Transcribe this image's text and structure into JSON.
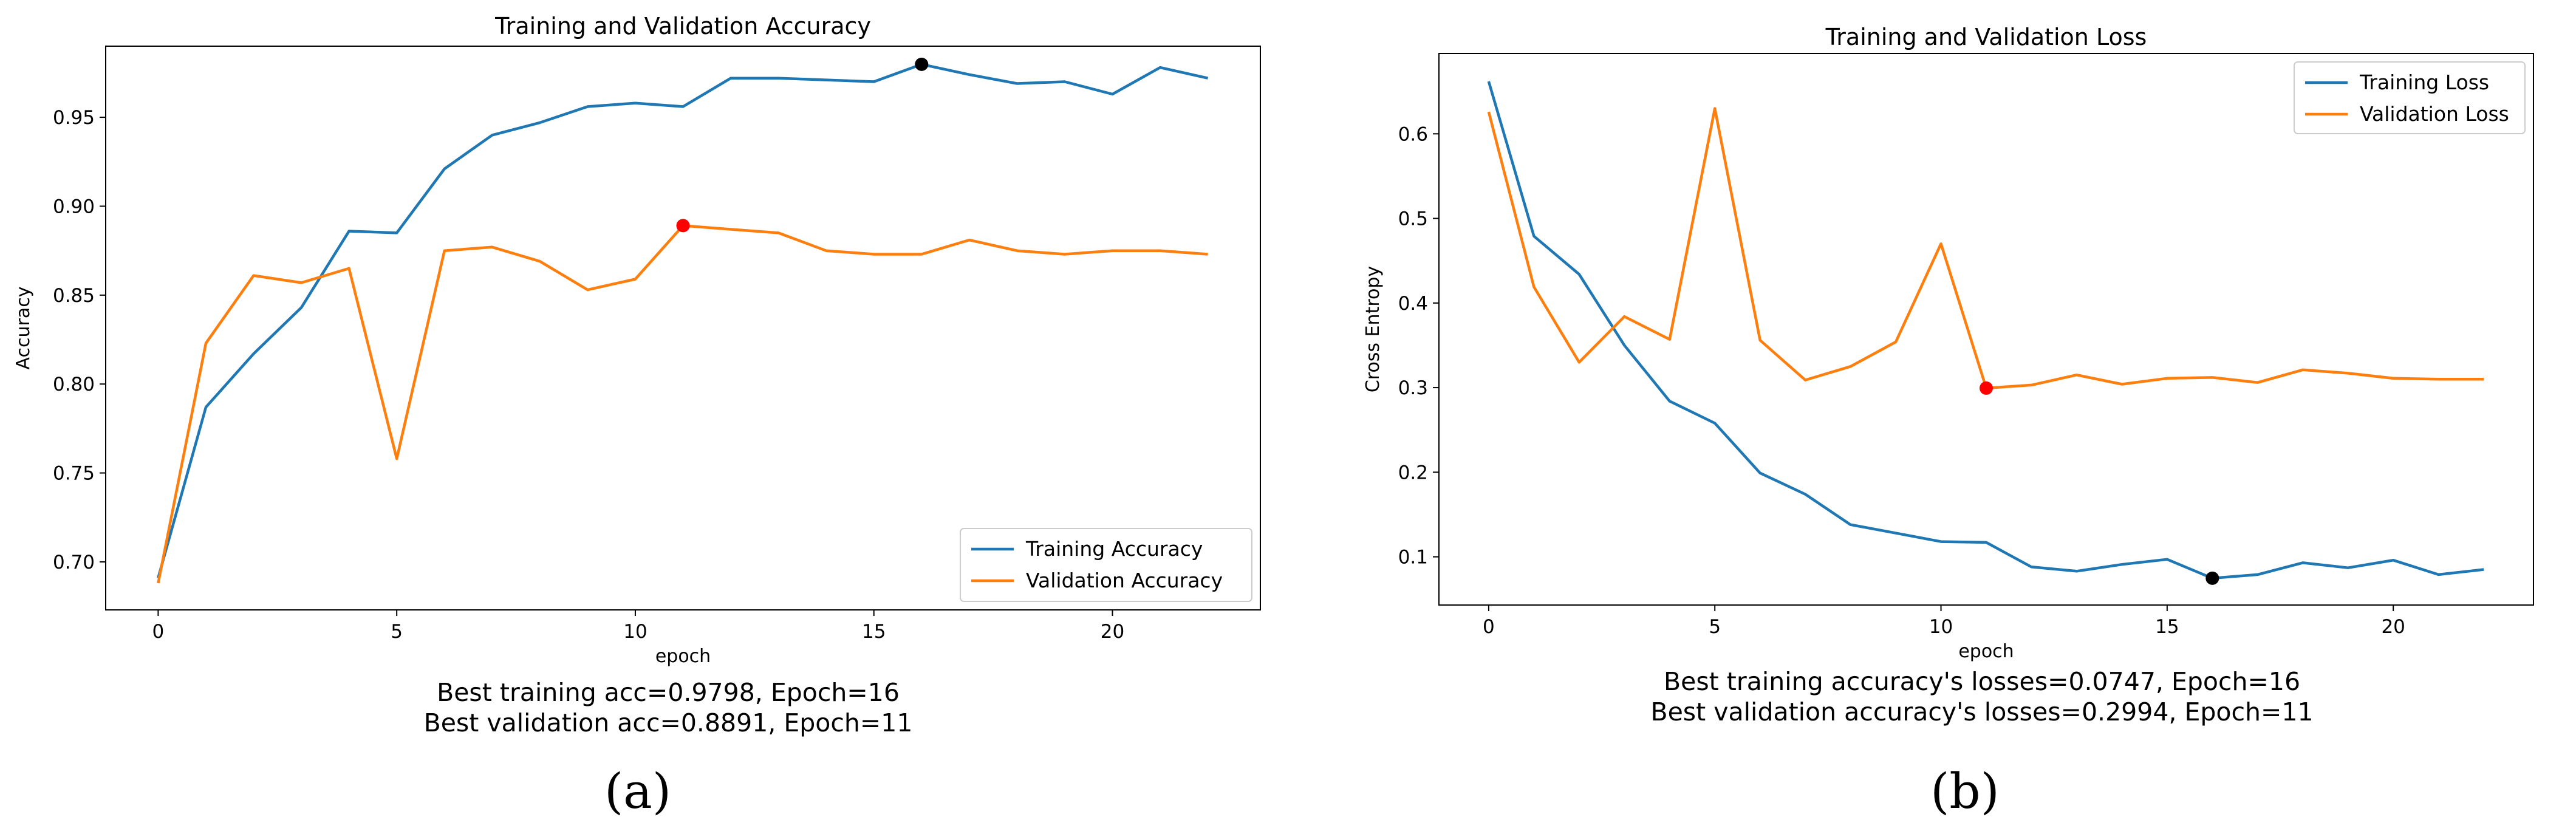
{
  "chart_data": [
    {
      "type": "line",
      "title": "Training and Validation Accuracy",
      "xlabel": "epoch",
      "ylabel": "Accuracy",
      "xlim": [
        -1.1,
        23.1
      ],
      "ylim": [
        0.673,
        0.99
      ],
      "xticks": [
        0,
        5,
        10,
        15,
        20
      ],
      "xtick_labels": [
        "0",
        "5",
        "10",
        "15",
        "20"
      ],
      "yticks": [
        0.7,
        0.75,
        0.8,
        0.85,
        0.9,
        0.95
      ],
      "ytick_labels": [
        "0.70",
        "0.75",
        "0.80",
        "0.85",
        "0.90",
        "0.95"
      ],
      "legend_position": "bottom-right",
      "x": [
        0,
        1,
        2,
        3,
        4,
        5,
        6,
        7,
        8,
        9,
        10,
        11,
        12,
        13,
        14,
        15,
        16,
        17,
        18,
        19,
        20,
        21,
        22
      ],
      "series": [
        {
          "name": "Training Accuracy",
          "color": "#1f77b4",
          "values": [
            0.691,
            0.787,
            0.817,
            0.843,
            0.886,
            0.885,
            0.921,
            0.94,
            0.947,
            0.956,
            0.958,
            0.956,
            0.972,
            0.972,
            0.971,
            0.97,
            0.9798,
            0.974,
            0.969,
            0.97,
            0.963,
            0.978,
            0.972
          ]
        },
        {
          "name": "Validation Accuracy",
          "color": "#ff7f0e",
          "values": [
            0.688,
            0.823,
            0.861,
            0.857,
            0.865,
            0.758,
            0.875,
            0.877,
            0.869,
            0.853,
            0.859,
            0.8891,
            0.887,
            0.885,
            0.875,
            0.873,
            0.873,
            0.881,
            0.875,
            0.873,
            0.875,
            0.875,
            0.873
          ]
        }
      ],
      "markers": [
        {
          "name": "best-training-point",
          "x": 16,
          "y": 0.9798,
          "color": "#000000"
        },
        {
          "name": "best-validation-point",
          "x": 11,
          "y": 0.8891,
          "color": "#ff0000"
        }
      ],
      "annotations": [
        "Best training acc=0.9798, Epoch=16",
        "Best validation acc=0.8891, Epoch=11"
      ],
      "caption": "(a)"
    },
    {
      "type": "line",
      "title": "Training and Validation Loss",
      "xlabel": "epoch",
      "ylabel": "Cross Entropy",
      "xlim": [
        -1.1,
        23.1
      ],
      "ylim": [
        0.043,
        0.695
      ],
      "xticks": [
        0,
        5,
        10,
        15,
        20
      ],
      "xtick_labels": [
        "0",
        "5",
        "10",
        "15",
        "20"
      ],
      "yticks": [
        0.1,
        0.2,
        0.3,
        0.4,
        0.5,
        0.6
      ],
      "ytick_labels": [
        "0.1",
        "0.2",
        "0.3",
        "0.4",
        "0.5",
        "0.6"
      ],
      "legend_position": "top-right",
      "x": [
        0,
        1,
        2,
        3,
        4,
        5,
        6,
        7,
        8,
        9,
        10,
        11,
        12,
        13,
        14,
        15,
        16,
        17,
        18,
        19,
        20,
        21,
        22
      ],
      "series": [
        {
          "name": "Training Loss",
          "color": "#1f77b4",
          "values": [
            0.662,
            0.479,
            0.434,
            0.35,
            0.284,
            0.258,
            0.199,
            0.174,
            0.138,
            0.128,
            0.118,
            0.117,
            0.088,
            0.083,
            0.091,
            0.097,
            0.0747,
            0.079,
            0.093,
            0.087,
            0.096,
            0.079,
            0.085
          ]
        },
        {
          "name": "Validation Loss",
          "color": "#ff7f0e",
          "values": [
            0.626,
            0.419,
            0.33,
            0.384,
            0.357,
            0.63,
            0.356,
            0.309,
            0.325,
            0.354,
            0.47,
            0.2994,
            0.303,
            0.315,
            0.304,
            0.311,
            0.312,
            0.306,
            0.321,
            0.317,
            0.311,
            0.31,
            0.31
          ]
        }
      ],
      "markers": [
        {
          "name": "best-training-point",
          "x": 16,
          "y": 0.0747,
          "color": "#000000"
        },
        {
          "name": "best-validation-point",
          "x": 11,
          "y": 0.2994,
          "color": "#ff0000"
        }
      ],
      "annotations": [
        "Best training accuracy's losses=0.0747, Epoch=16",
        "Best validation accuracy's losses=0.2994, Epoch=11"
      ],
      "caption": "(b)"
    }
  ]
}
